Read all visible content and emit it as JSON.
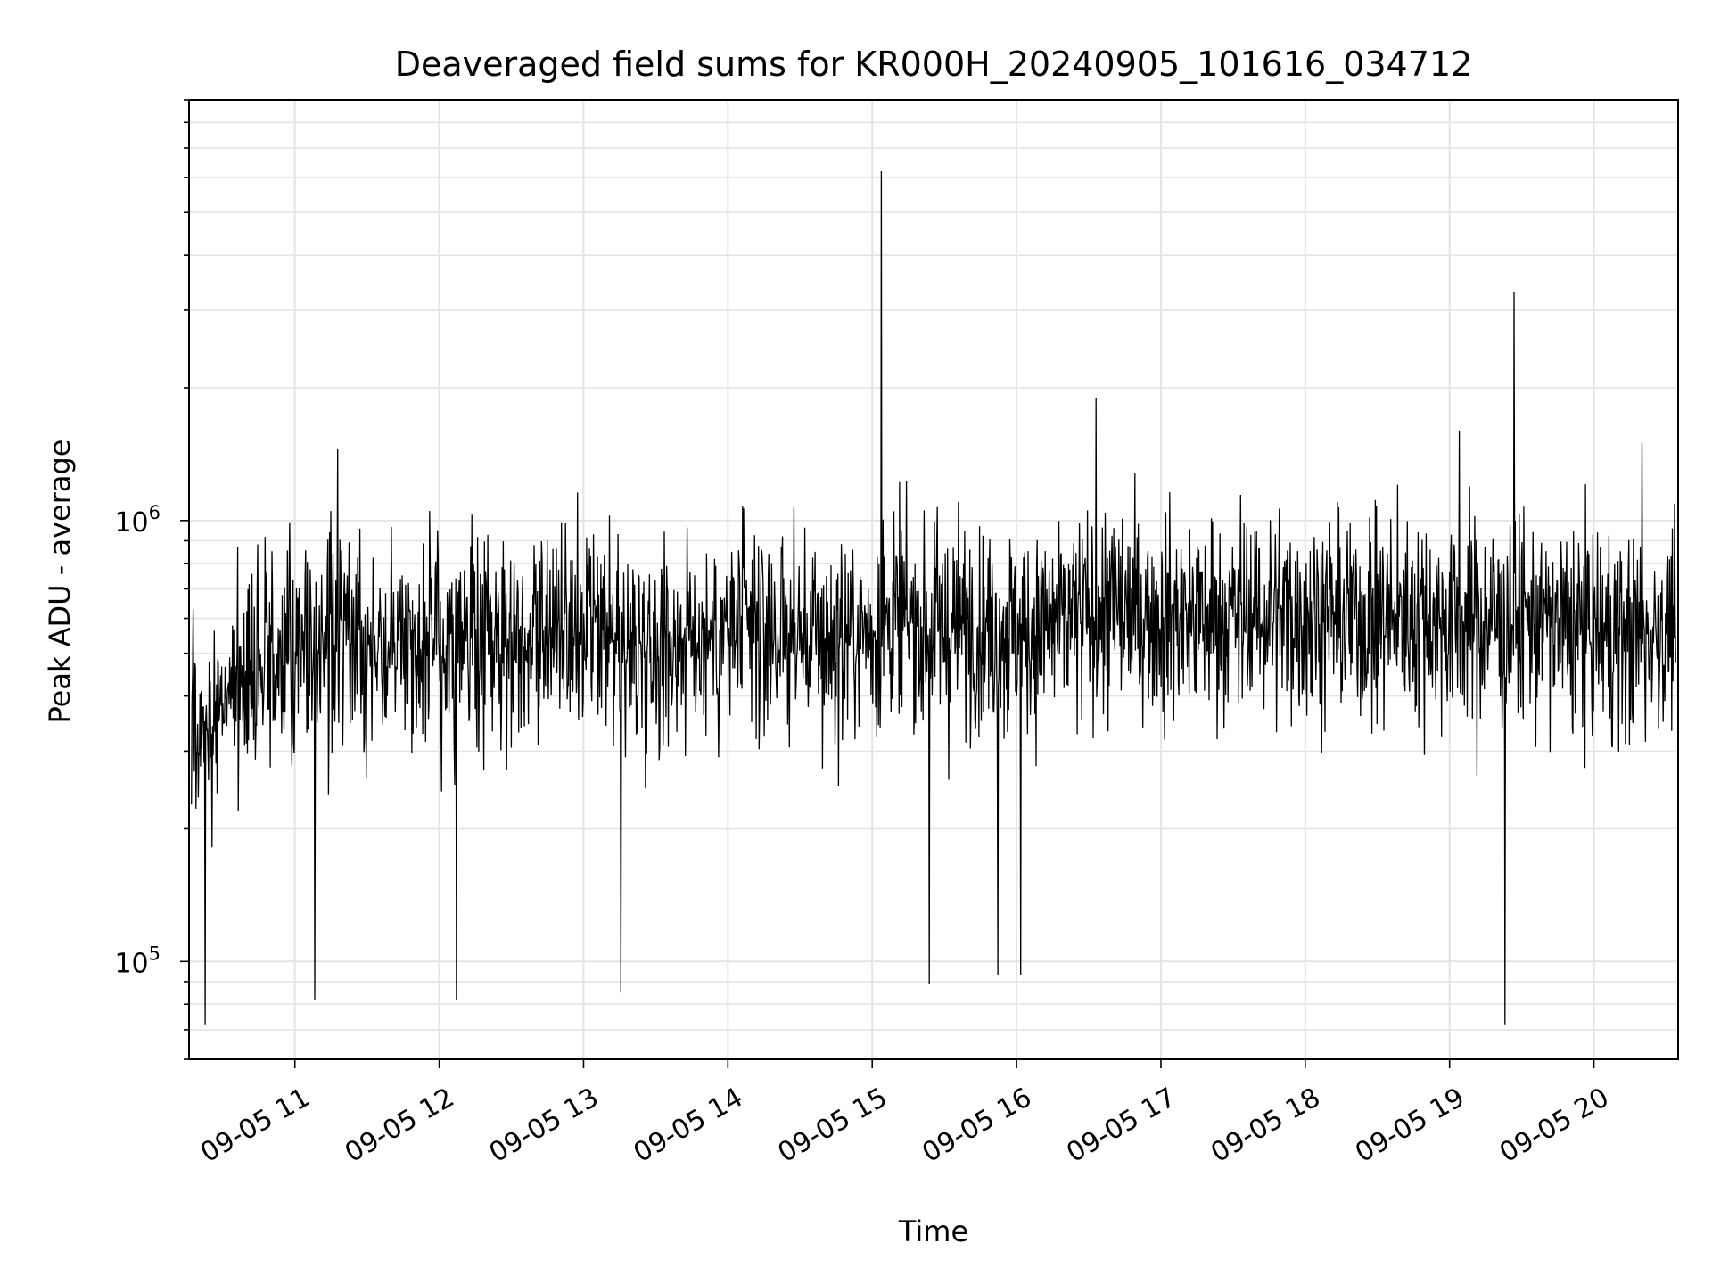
{
  "chart_data": {
    "type": "line",
    "title": "Deaveraged field sums for KR000H_20240905_101616_034712",
    "xlabel": "Time",
    "ylabel": "Peak ADU - average",
    "yscale": "log",
    "ylim": [
      60000,
      9000000
    ],
    "xlim": [
      "2024-09-05 10:16",
      "2024-09-05 20:35"
    ],
    "grid": true,
    "x_tick_labels": [
      "09-05 11",
      "09-05 12",
      "09-05 13",
      "09-05 14",
      "09-05 15",
      "09-05 16",
      "09-05 17",
      "09-05 18",
      "09-05 19",
      "09-05 20"
    ],
    "x_tick_values": [
      "2024-09-05 11:00",
      "2024-09-05 12:00",
      "2024-09-05 13:00",
      "2024-09-05 14:00",
      "2024-09-05 15:00",
      "2024-09-05 16:00",
      "2024-09-05 17:00",
      "2024-09-05 18:00",
      "2024-09-05 19:00",
      "2024-09-05 20:00"
    ],
    "y_ticks": [
      {
        "value": 100000,
        "base": "10",
        "exp": "5"
      },
      {
        "value": 1000000,
        "base": "10",
        "exp": "6"
      }
    ],
    "series": [
      {
        "color": "#000000",
        "x": [
          "2024-09-05 10:17",
          "2024-09-05 10:24",
          "2024-09-05 10:40",
          "2024-09-05 11:00",
          "2024-09-05 11:20",
          "2024-09-05 11:40",
          "2024-09-05 12:00",
          "2024-09-05 12:20",
          "2024-09-05 12:40",
          "2024-09-05 13:00",
          "2024-09-05 13:20",
          "2024-09-05 13:40",
          "2024-09-05 14:00",
          "2024-09-05 14:20",
          "2024-09-05 14:40",
          "2024-09-05 15:00",
          "2024-09-05 15:04",
          "2024-09-05 15:20",
          "2024-09-05 15:40",
          "2024-09-05 16:00",
          "2024-09-05 16:20",
          "2024-09-05 16:40",
          "2024-09-05 17:00",
          "2024-09-05 17:20",
          "2024-09-05 17:40",
          "2024-09-05 18:00",
          "2024-09-05 18:20",
          "2024-09-05 18:40",
          "2024-09-05 19:00",
          "2024-09-05 19:20",
          "2024-09-05 19:27",
          "2024-09-05 19:40",
          "2024-09-05 20:00",
          "2024-09-05 20:20",
          "2024-09-05 20:34"
        ],
        "y": [
          400000,
          350000,
          450000,
          520000,
          550000,
          560000,
          500000,
          540000,
          560000,
          530000,
          520000,
          540000,
          550000,
          560000,
          530000,
          560000,
          6200000,
          570000,
          580000,
          560000,
          580000,
          620000,
          610000,
          600000,
          610000,
          620000,
          600000,
          610000,
          590000,
          600000,
          3300000,
          580000,
          560000,
          540000,
          600000
        ],
        "noise_band_low": 150000,
        "noise_band_high": 1300000,
        "spike_peaks": [
          {
            "x": "2024-09-05 15:04",
            "y": 6200000
          },
          {
            "x": "2024-09-05 19:27",
            "y": 3300000
          },
          {
            "x": "2024-09-05 16:33",
            "y": 1900000
          },
          {
            "x": "2024-09-05 19:04",
            "y": 1600000
          },
          {
            "x": "2024-09-05 20:20",
            "y": 1500000
          },
          {
            "x": "2024-09-05 11:18",
            "y": 1450000
          }
        ],
        "dip_troughs": [
          {
            "x": "2024-09-05 10:23",
            "y": 72000
          },
          {
            "x": "2024-09-05 11:08",
            "y": 82000
          },
          {
            "x": "2024-09-05 12:07",
            "y": 82000
          },
          {
            "x": "2024-09-05 13:16",
            "y": 85000
          },
          {
            "x": "2024-09-05 15:24",
            "y": 89000
          },
          {
            "x": "2024-09-05 15:52",
            "y": 93000
          },
          {
            "x": "2024-09-05 16:02",
            "y": 93000
          },
          {
            "x": "2024-09-05 19:23",
            "y": 72000
          }
        ]
      }
    ]
  }
}
